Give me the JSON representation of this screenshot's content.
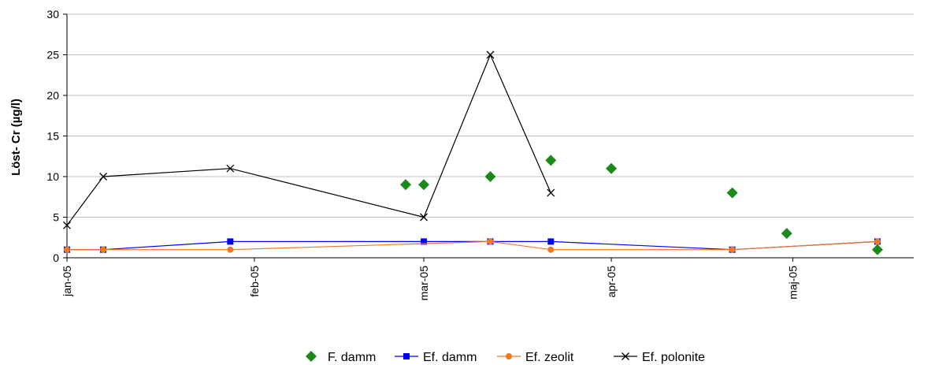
{
  "chart_data": {
    "type": "line",
    "title": "",
    "xlabel": "",
    "ylabel": "Löst- Cr (µg/l)",
    "ylim": [
      0,
      30
    ],
    "yticks": [
      0,
      5,
      10,
      15,
      20,
      25,
      30
    ],
    "xlim": [
      "2005-01-01",
      "2005-05-21"
    ],
    "xticks": [
      {
        "date": "2005-01-01",
        "label": "jan-05"
      },
      {
        "date": "2005-02-01",
        "label": "feb-05"
      },
      {
        "date": "2005-03-01",
        "label": "mar-05"
      },
      {
        "date": "2005-04-01",
        "label": "apr-05"
      },
      {
        "date": "2005-05-01",
        "label": "maj-05"
      }
    ],
    "grid": "horizontal",
    "legend": "bottom",
    "series": [
      {
        "name": "F. damm",
        "style": "markers",
        "marker": "diamond",
        "color": "#1a8a1a",
        "points": [
          {
            "x": "2005-02-26",
            "y": 9
          },
          {
            "x": "2005-03-01",
            "y": 9
          },
          {
            "x": "2005-03-12",
            "y": 10
          },
          {
            "x": "2005-03-22",
            "y": 12
          },
          {
            "x": "2005-04-01",
            "y": 11
          },
          {
            "x": "2005-04-21",
            "y": 8
          },
          {
            "x": "2005-04-30",
            "y": 3
          },
          {
            "x": "2005-05-15",
            "y": 1
          }
        ]
      },
      {
        "name": "Ef. damm",
        "style": "line",
        "marker": "square",
        "color": "#0000ff",
        "points": [
          {
            "x": "2005-01-01",
            "y": 1
          },
          {
            "x": "2005-01-07",
            "y": 1
          },
          {
            "x": "2005-01-28",
            "y": 2
          },
          {
            "x": "2005-03-01",
            "y": 2
          },
          {
            "x": "2005-03-12",
            "y": 2
          },
          {
            "x": "2005-03-22",
            "y": 2
          },
          {
            "x": "2005-04-21",
            "y": 1
          },
          {
            "x": "2005-05-15",
            "y": 2
          }
        ]
      },
      {
        "name": "Ef. zeolit",
        "style": "line",
        "marker": "circle",
        "color": "#f07820",
        "points": [
          {
            "x": "2005-01-01",
            "y": 1
          },
          {
            "x": "2005-01-07",
            "y": 1
          },
          {
            "x": "2005-01-28",
            "y": 1
          },
          {
            "x": "2005-03-12",
            "y": 2
          },
          {
            "x": "2005-03-22",
            "y": 1
          },
          {
            "x": "2005-04-21",
            "y": 1
          },
          {
            "x": "2005-05-15",
            "y": 2
          }
        ]
      },
      {
        "name": "Ef. polonite",
        "style": "line",
        "marker": "x",
        "color": "#000000",
        "points": [
          {
            "x": "2005-01-01",
            "y": 4
          },
          {
            "x": "2005-01-07",
            "y": 10
          },
          {
            "x": "2005-01-28",
            "y": 11
          },
          {
            "x": "2005-03-01",
            "y": 5
          },
          {
            "x": "2005-03-12",
            "y": 25
          },
          {
            "x": "2005-03-22",
            "y": 8
          }
        ]
      }
    ]
  }
}
